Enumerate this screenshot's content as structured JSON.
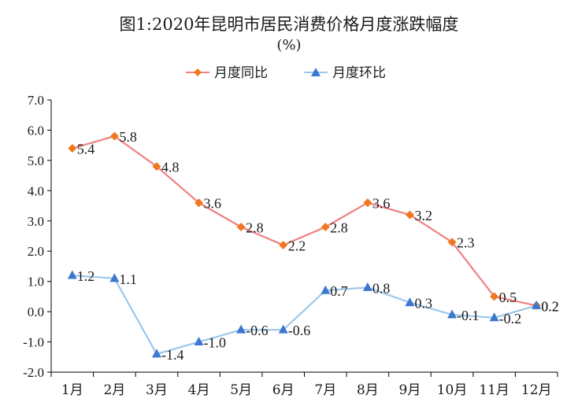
{
  "chart_data": {
    "type": "line",
    "title": "图1:2020年昆明市居民消费价格月度涨跌幅度",
    "subtitle": "(%)",
    "categories": [
      "1月",
      "2月",
      "3月",
      "4月",
      "5月",
      "6月",
      "7月",
      "8月",
      "9月",
      "10月",
      "11月",
      "12月"
    ],
    "y_ticks": [
      "7.0",
      "6.0",
      "5.0",
      "4.0",
      "3.0",
      "2.0",
      "1.0",
      "0.0",
      "-1.0",
      "-2.0"
    ],
    "ylim": [
      -2.0,
      7.0
    ],
    "legend_position": "top-center",
    "grid": false,
    "series": [
      {
        "name": "月度同比",
        "marker": "diamond",
        "line_color": "#f08080",
        "marker_color": "#f07820",
        "values": [
          5.4,
          5.8,
          4.8,
          3.6,
          2.8,
          2.2,
          2.8,
          3.6,
          3.2,
          2.3,
          0.5,
          0.2
        ],
        "labels": [
          "5.4",
          "5.8",
          "4.8",
          "3.6",
          "2.8",
          "2.2",
          "2.8",
          "3.6",
          "3.2",
          "2.3",
          "0.5",
          "0.2"
        ]
      },
      {
        "name": "月度环比",
        "marker": "triangle",
        "line_color": "#9cc8ec",
        "marker_color": "#3c78d0",
        "values": [
          1.2,
          1.1,
          -1.4,
          -1.0,
          -0.6,
          -0.6,
          0.7,
          0.8,
          0.3,
          -0.1,
          -0.2,
          0.2
        ],
        "labels": [
          "1.2",
          "1.1",
          "-1.4",
          "-1.0",
          "-0.6",
          "-0.6",
          "0.7",
          "0.8",
          "0.3",
          "-0.1",
          "-0.2",
          "0.2"
        ]
      }
    ]
  }
}
